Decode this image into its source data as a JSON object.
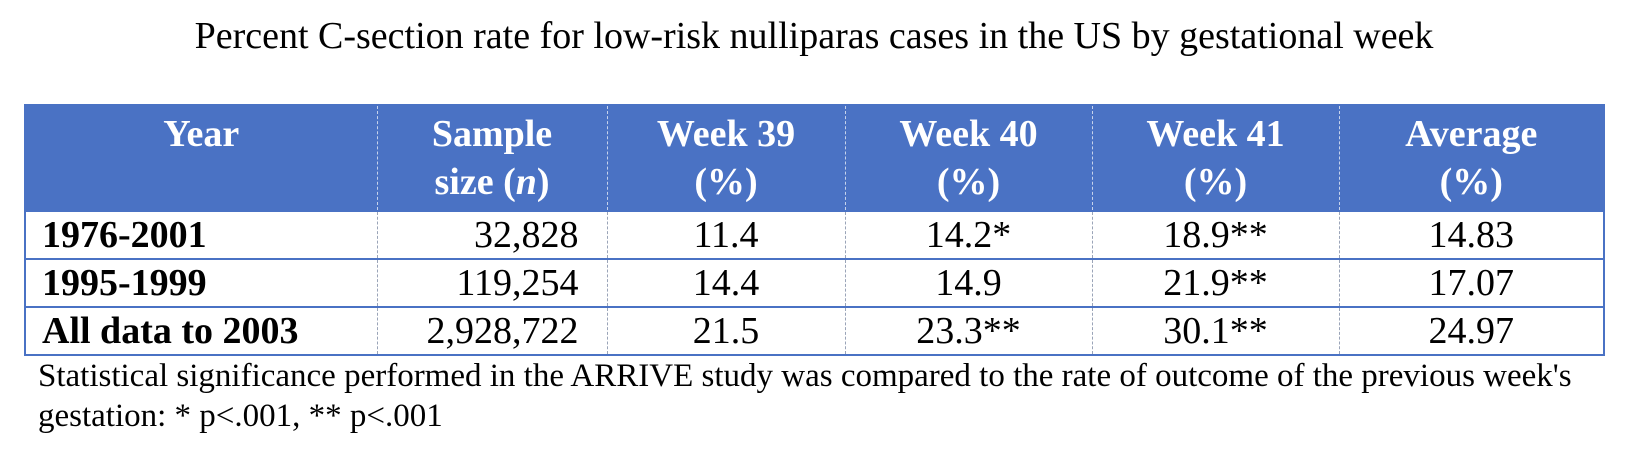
{
  "title": "Percent C-section rate for low-risk nulliparas cases in the US by gestational week",
  "table": {
    "headers": {
      "year": "Year",
      "sample_line1": "Sample",
      "sample_line2_pre": "size (",
      "sample_line2_var": "n",
      "sample_line2_post": ")",
      "week39_line1": "Week 39",
      "week39_line2": "(%)",
      "week40_line1": "Week 40",
      "week40_line2": "(%)",
      "week41_line1": "Week 41",
      "week41_line2": "(%)",
      "average_line1": "Average",
      "average_line2": "(%)"
    },
    "rows": [
      {
        "year": "1976-2001",
        "sample_size": "32,828",
        "week39": "11.4",
        "week40": "14.2*",
        "week41": "18.9**",
        "average": "14.83"
      },
      {
        "year": "1995-1999",
        "sample_size": "119,254",
        "week39": "14.4",
        "week40": "14.9",
        "week41": "21.9**",
        "average": "17.07"
      },
      {
        "year": "All data to 2003",
        "sample_size": "2,928,722",
        "week39": "21.5",
        "week40": "23.3**",
        "week41": "30.1**",
        "average": "24.97"
      }
    ]
  },
  "footnote": "Statistical significance performed in the ARRIVE study was compared to the rate of outcome of the previous week's gestation: * p<.001, ** p<.001",
  "colors": {
    "header_bg": "#4a72c4",
    "header_text": "#ffffff",
    "border": "#4a72c4"
  }
}
